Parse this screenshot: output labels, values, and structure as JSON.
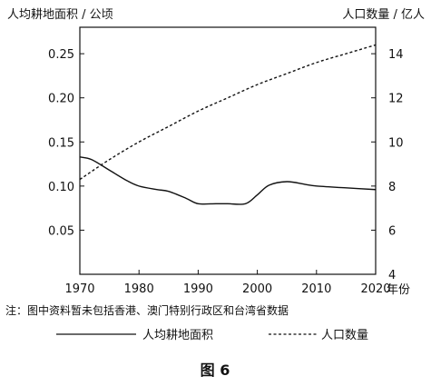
{
  "chart_data": {
    "type": "line",
    "left_axis_title": "人均耕地面积 / 公顷",
    "right_axis_title": "人口数量 / 亿人",
    "x_unit": "年份",
    "x_ticks": [
      "1970",
      "1980",
      "1990",
      "2000",
      "2010",
      "2020"
    ],
    "xlim": [
      1970,
      2020
    ],
    "y_left_ticks": [
      "0.05",
      "0.10",
      "0.15",
      "0.20",
      "0.25"
    ],
    "y_left_lim": [
      0.0,
      0.28
    ],
    "y_right_ticks": [
      "4",
      "6",
      "8",
      "10",
      "12",
      "14"
    ],
    "y_right_lim": [
      4,
      15.2
    ],
    "series": [
      {
        "name": "人均耕地面积",
        "axis": "left",
        "style": "solid",
        "x": [
          1970,
          1972,
          1975,
          1978,
          1980,
          1983,
          1985,
          1988,
          1990,
          1993,
          1995,
          1998,
          2000,
          2002,
          2005,
          2008,
          2010,
          2015,
          2020
        ],
        "y": [
          0.133,
          0.13,
          0.118,
          0.106,
          0.1,
          0.096,
          0.094,
          0.086,
          0.08,
          0.08,
          0.08,
          0.08,
          0.09,
          0.101,
          0.105,
          0.102,
          0.1,
          0.098,
          0.096
        ]
      },
      {
        "name": "人口数量",
        "axis": "right",
        "style": "dashed",
        "x": [
          1970,
          1975,
          1980,
          1985,
          1990,
          1995,
          2000,
          2005,
          2010,
          2015,
          2020
        ],
        "y": [
          8.3,
          9.2,
          10.0,
          10.7,
          11.4,
          12.0,
          12.6,
          13.1,
          13.6,
          14.0,
          14.4
        ]
      }
    ]
  },
  "note": "注：图中资料暂未包括香港、澳门特别行政区和台湾省数据",
  "legend": {
    "solid_label": "人均耕地面积",
    "dashed_label": "人口数量"
  },
  "figure_title": "图 6"
}
